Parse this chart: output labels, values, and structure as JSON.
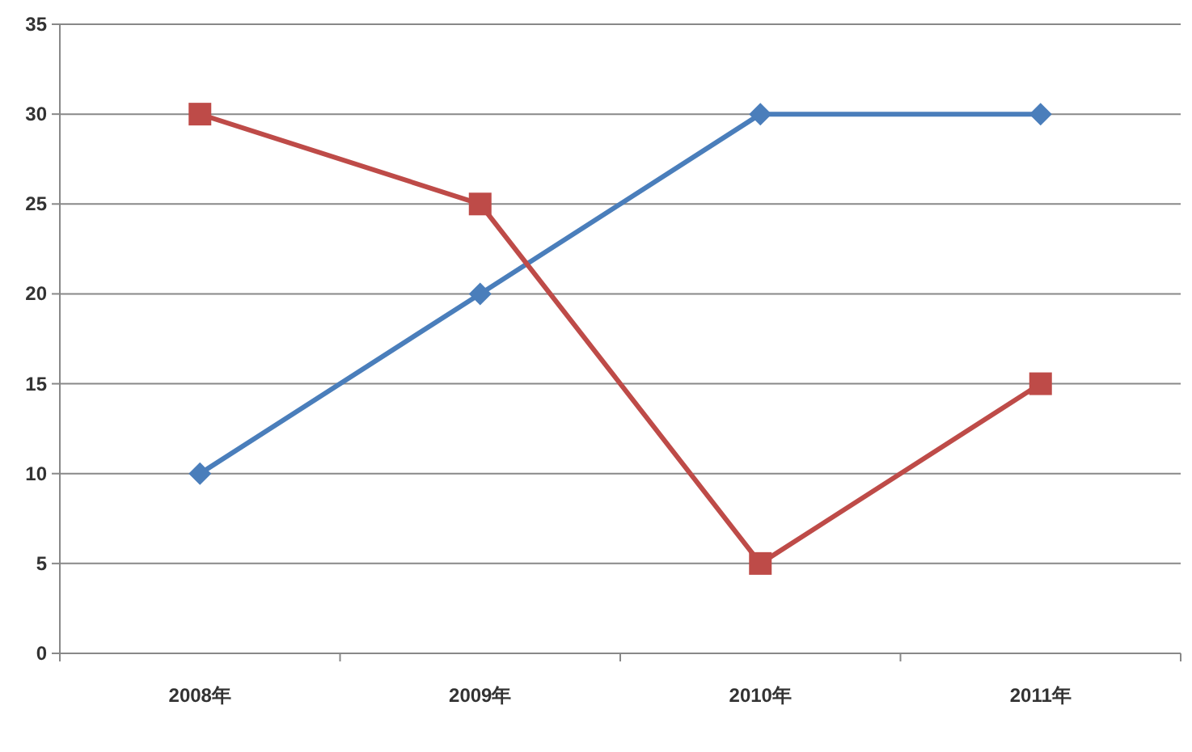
{
  "chart_data": {
    "type": "line",
    "categories": [
      "2008年",
      "2009年",
      "2010年",
      "2011年"
    ],
    "series": [
      {
        "color": "#4a7ebb",
        "marker": "diamond",
        "values": [
          10,
          20,
          30,
          30
        ]
      },
      {
        "color": "#be4b48",
        "marker": "square",
        "values": [
          30,
          25,
          5,
          15
        ]
      }
    ],
    "ylim": [
      0,
      35
    ],
    "yticks": [
      0,
      5,
      10,
      15,
      20,
      25,
      30,
      35
    ],
    "grid": "y"
  }
}
